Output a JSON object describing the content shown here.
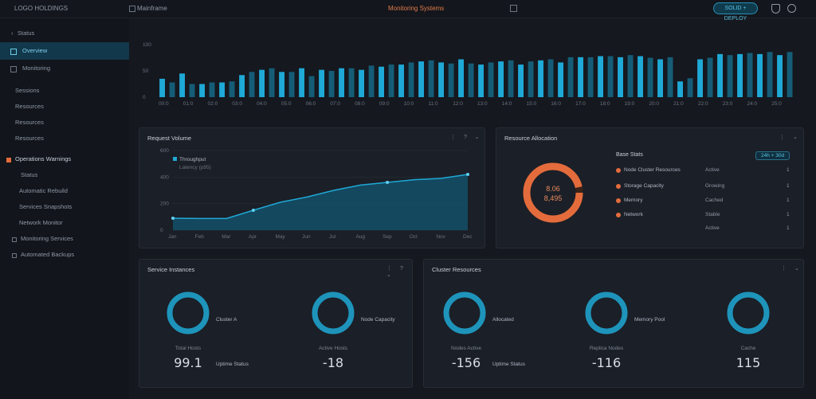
{
  "header": {
    "app_title": "LOGO HOLDINGS",
    "breadcrumb": "Mainframe",
    "page_title": "Monitoring Systems",
    "pill": "SOLID + DEPLOY"
  },
  "sidebar": {
    "items": [
      {
        "label": "Status",
        "glyph": "menu-icon"
      },
      {
        "label": "Overview",
        "glyph": "dashboard-icon"
      },
      {
        "label": "Monitoring",
        "glyph": "monitor-icon"
      },
      {
        "label": "Sessions"
      },
      {
        "label": "Resources"
      },
      {
        "label": "Resources"
      },
      {
        "label": "Operations Warnings",
        "glyph": "alert-icon"
      },
      {
        "label": "Status"
      },
      {
        "label": "Automatic Rebuild"
      },
      {
        "label": "Services Snapshots"
      },
      {
        "label": "Network Monitor"
      },
      {
        "label": "Monitoring Services",
        "glyph": "service-icon"
      },
      {
        "label": "Automated Backups",
        "glyph": "backup-icon"
      }
    ]
  },
  "colors": {
    "accent": "#1fa9d6",
    "warn": "#e46c3c",
    "bg": "#15181f"
  },
  "top_chart": {
    "y_ticks": [
      "100",
      "50",
      "0"
    ],
    "x_ticks": [
      "00:0",
      "01:0",
      "02:0",
      "03:0",
      "04:0",
      "05:0",
      "06:0",
      "07:0",
      "08:0",
      "09:0",
      "10:0",
      "11:0",
      "12:0",
      "13:0",
      "14:0",
      "15:0",
      "16:0",
      "17:0",
      "18:0",
      "19:0",
      "20:0",
      "21:0",
      "22:0",
      "23:0",
      "24:0",
      "25:0"
    ]
  },
  "chart_data": [
    {
      "type": "bar",
      "title": "",
      "values": [
        35,
        28,
        45,
        25,
        25,
        28,
        28,
        30,
        42,
        48,
        52,
        55,
        48,
        48,
        55,
        40,
        52,
        50,
        55,
        55,
        52,
        60,
        58,
        62,
        62,
        66,
        68,
        70,
        66,
        64,
        72,
        64,
        62,
        66,
        68,
        70,
        62,
        68,
        70,
        72,
        66,
        76,
        76,
        76,
        78,
        78,
        76,
        80,
        78,
        75,
        72,
        76,
        30,
        36,
        72,
        75,
        82,
        80,
        82,
        84,
        82,
        86,
        80,
        86
      ],
      "ylim": [
        0,
        100
      ]
    },
    {
      "type": "area",
      "title": "Request Volume",
      "legend": [
        "Throughput",
        "Latency (p95)"
      ],
      "y_ticks": [
        "600",
        "400",
        "200",
        "0"
      ],
      "x_ticks": [
        "Jan",
        "Feb",
        "Mar",
        "Apr",
        "May",
        "Jun",
        "Jul",
        "Aug",
        "Sep",
        "Oct",
        "Nov",
        "Dec"
      ],
      "x": [
        0,
        1,
        2,
        3,
        4,
        5,
        6,
        7,
        8,
        9,
        10,
        11
      ],
      "values": [
        90,
        88,
        88,
        150,
        210,
        250,
        300,
        340,
        360,
        380,
        390,
        420
      ],
      "ylim": [
        0,
        600
      ]
    }
  ],
  "donut": {
    "title": "Resource Allocation",
    "center_value": "8.06",
    "center_sub": "8,495",
    "header": "Base Stats",
    "range": "24h + 30d",
    "legend": [
      {
        "label": "Node Cluster Resources",
        "value": "Active"
      },
      {
        "label": "Storage Capacity",
        "value": "Growing"
      },
      {
        "label": "Memory",
        "value": "Cached"
      },
      {
        "label": "Network",
        "value": "Stable"
      }
    ],
    "side_values": [
      "1",
      "1",
      "1",
      "1",
      "1"
    ]
  },
  "panel_a": {
    "title": "Service Instances",
    "cards": [
      {
        "label": "Total Hosts",
        "value": "99.1",
        "sub": "Uptime Status",
        "ring_label": "Cluster A"
      },
      {
        "label": "Active Hosts",
        "value": "-18",
        "sub": "",
        "ring_label": "Node Capacity"
      }
    ]
  },
  "panel_b": {
    "title": "Cluster Resources",
    "cards": [
      {
        "label": "Nodes Active",
        "value": "-156",
        "sub": "Uptime Status",
        "ring_label": "Allocated"
      },
      {
        "label": "Replica Nodes",
        "value": "-116",
        "sub": "",
        "ring_label": "Memory Pool"
      },
      {
        "label": "Cache",
        "value": "115",
        "sub": "",
        "ring_label": ""
      }
    ]
  }
}
